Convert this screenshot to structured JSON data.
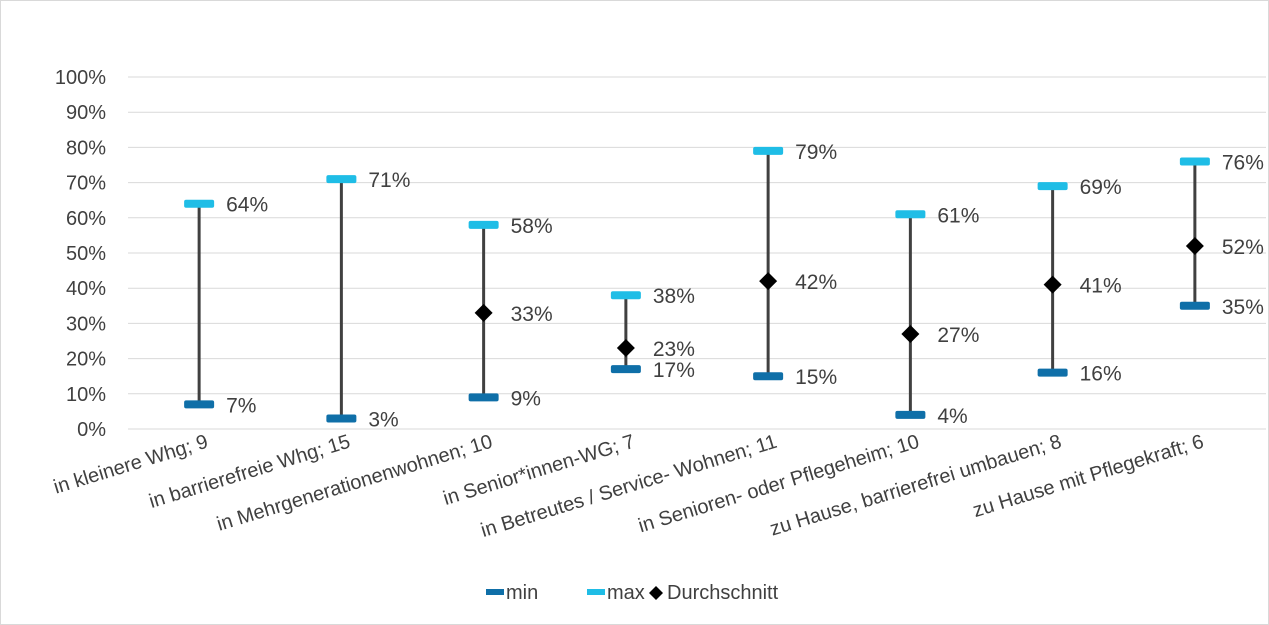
{
  "chart_data": {
    "type": "line",
    "categories": [
      "in kleinere Whg; 9",
      "in barrierefreie Whg; 15",
      "in Mehrgenerationenwohnen; 10",
      "in Senior*innen-WG; 7",
      "in Betreutes / Service- Wohnen; 11",
      "in Senioren- oder Pflegeheim; 10",
      "zu Hause, barrierefrei umbauen; 8",
      "zu Hause mit Pflegekraft; 6"
    ],
    "series": [
      {
        "name": "min",
        "values": [
          7,
          3,
          9,
          17,
          15,
          4,
          16,
          35
        ],
        "labels": [
          "7%",
          "3%",
          "9%",
          "17%",
          "15%",
          "4%",
          "16%",
          "35%"
        ]
      },
      {
        "name": "max",
        "values": [
          64,
          71,
          58,
          38,
          79,
          61,
          69,
          76
        ],
        "labels": [
          "64%",
          "71%",
          "58%",
          "38%",
          "79%",
          "61%",
          "69%",
          "76%"
        ]
      },
      {
        "name": "Durchschnitt",
        "values": [
          null,
          null,
          33,
          23,
          42,
          27,
          41,
          52
        ],
        "labels": [
          null,
          null,
          "33%",
          "23%",
          "42%",
          "27%",
          "41%",
          "52%"
        ]
      }
    ],
    "y_ticks": [
      "0%",
      "10%",
      "20%",
      "30%",
      "40%",
      "50%",
      "60%",
      "70%",
      "80%",
      "90%",
      "100%"
    ],
    "ylim": [
      0,
      100
    ],
    "grid": true,
    "legend_position": "bottom",
    "colors": {
      "min": "#0f6fa8",
      "max": "#1fbde6",
      "Durchschnitt": "#000000",
      "range_line": "#404040",
      "grid": "#d9d9d9"
    }
  }
}
